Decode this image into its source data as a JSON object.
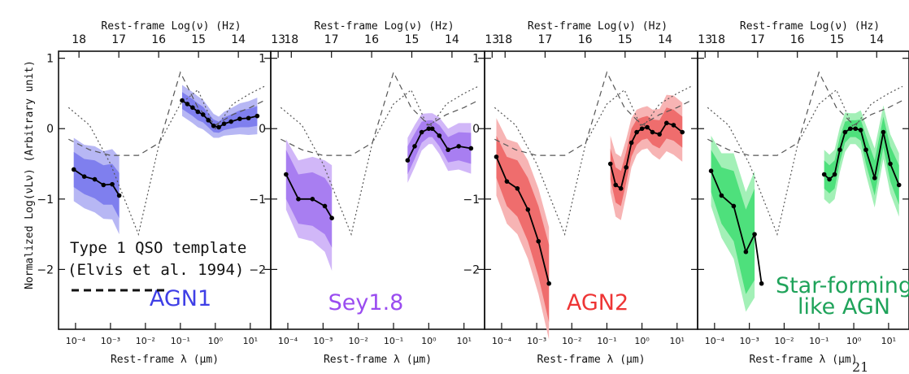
{
  "figure": {
    "ylabel": "Normalized Log(νLν) (Arbitrary unit)",
    "legend_note_line1": "Type 1 QSO template",
    "legend_note_line2": "(Elvis et al. 1994)",
    "page_number": "21"
  },
  "chart_data": [
    {
      "type": "area",
      "label": "AGN1",
      "color": "#3f3fe6",
      "band_outer": "#b7b7f4",
      "band_inner": "#7f7fee",
      "top_axis_label": "Rest-frame Log(ν) (Hz)",
      "top_ticks": [
        "18",
        "17",
        "16",
        "15",
        "14",
        "13"
      ],
      "bottom_axis_label": "Rest-frame λ (μm)",
      "bottom_ticks": [
        "10⁻⁴",
        "10⁻³",
        "10⁻²",
        "10⁻¹",
        "10⁰",
        "10¹"
      ],
      "y_ticks": [
        "1",
        "0",
        "−1",
        "−2"
      ],
      "xlim": [
        -4.3,
        1.4
      ],
      "ylim": [
        -2.85,
        1.1
      ],
      "xray_x": [
        -4.05,
        -3.75,
        -3.45,
        -3.2,
        -2.95,
        -2.75
      ],
      "xray_y": [
        -0.58,
        -0.68,
        -0.72,
        -0.8,
        -0.79,
        -0.95
      ],
      "xray_band_inner": [
        0.25,
        0.25,
        0.27,
        0.28,
        0.29,
        0.32
      ],
      "xray_band_outer": [
        0.45,
        0.45,
        0.47,
        0.48,
        0.5,
        0.55
      ],
      "ir_x": [
        -0.95,
        -0.8,
        -0.65,
        -0.5,
        -0.35,
        -0.2,
        -0.05,
        0.1,
        0.25,
        0.45,
        0.7,
        0.95,
        1.2
      ],
      "ir_y": [
        0.4,
        0.35,
        0.3,
        0.24,
        0.2,
        0.12,
        0.04,
        0.02,
        0.07,
        0.1,
        0.14,
        0.15,
        0.18
      ],
      "ir_band_inner": [
        0.12,
        0.12,
        0.12,
        0.12,
        0.11,
        0.1,
        0.09,
        0.08,
        0.09,
        0.1,
        0.12,
        0.13,
        0.14
      ],
      "ir_band_outer": [
        0.22,
        0.22,
        0.22,
        0.22,
        0.21,
        0.19,
        0.17,
        0.15,
        0.17,
        0.19,
        0.22,
        0.24,
        0.26
      ]
    },
    {
      "type": "area",
      "label": "Sey1.8",
      "color": "#9a4cf0",
      "band_outer": "#d1b7f8",
      "band_inner": "#a87ef1",
      "top_axis_label": "Rest-frame Log(ν) (Hz)",
      "top_ticks": [
        "18",
        "17",
        "16",
        "15",
        "14",
        "13"
      ],
      "bottom_axis_label": "Rest-frame λ (μm)",
      "bottom_ticks": [
        "10⁻⁴",
        "10⁻³",
        "10⁻²",
        "10⁻¹",
        "10⁰",
        "10¹"
      ],
      "y_ticks": [
        "1",
        "0",
        "−1",
        "−2"
      ],
      "xlim": [
        -4.3,
        1.4
      ],
      "ylim": [
        -2.85,
        1.1
      ],
      "xray_x": [
        -4.05,
        -3.7,
        -3.3,
        -2.95,
        -2.75
      ],
      "xray_y": [
        -0.65,
        -1.0,
        -1.0,
        -1.1,
        -1.27
      ],
      "xray_band_inner": [
        0.35,
        0.35,
        0.38,
        0.4,
        0.42
      ],
      "xray_band_outer": [
        0.5,
        0.55,
        0.6,
        0.65,
        0.75
      ],
      "ir_x": [
        -0.6,
        -0.4,
        -0.2,
        0.0,
        0.1,
        0.3,
        0.55,
        0.85,
        1.2
      ],
      "ir_y": [
        -0.45,
        -0.25,
        -0.05,
        0.0,
        0.0,
        -0.1,
        -0.3,
        -0.25,
        -0.28
      ],
      "ir_band_inner": [
        0.2,
        0.18,
        0.15,
        0.12,
        0.12,
        0.15,
        0.18,
        0.2,
        0.22
      ],
      "ir_band_outer": [
        0.32,
        0.3,
        0.26,
        0.22,
        0.22,
        0.26,
        0.3,
        0.33,
        0.36
      ]
    },
    {
      "type": "area",
      "label": "AGN2",
      "color": "#ee3535",
      "band_outer": "#f7b4b4",
      "band_inner": "#ef6d6d",
      "top_axis_label": "Rest-frame Log(ν) (Hz)",
      "top_ticks": [
        "18",
        "17",
        "16",
        "15",
        "14",
        "13"
      ],
      "bottom_axis_label": "Rest-frame λ (μm)",
      "bottom_ticks": [
        "10⁻⁴",
        "10⁻³",
        "10⁻²",
        "10⁻¹",
        "10⁰",
        "10¹"
      ],
      "y_ticks": [
        "1",
        "0",
        "−1",
        "−2"
      ],
      "xlim": [
        -4.3,
        1.4
      ],
      "ylim": [
        -2.85,
        1.1
      ],
      "xray_x": [
        -4.15,
        -3.85,
        -3.55,
        -3.25,
        -2.95,
        -2.65
      ],
      "xray_y": [
        -0.4,
        -0.75,
        -0.85,
        -1.15,
        -1.6,
        -2.2
      ],
      "xray_band_inner": [
        0.3,
        0.35,
        0.4,
        0.45,
        0.5,
        0.55
      ],
      "xray_band_outer": [
        0.55,
        0.6,
        0.65,
        0.7,
        0.75,
        0.8
      ],
      "ir_x": [
        -0.9,
        -0.75,
        -0.6,
        -0.45,
        -0.3,
        -0.15,
        0.0,
        0.15,
        0.3,
        0.5,
        0.7,
        0.9,
        1.15
      ],
      "ir_y": [
        -0.5,
        -0.8,
        -0.85,
        -0.55,
        -0.2,
        -0.05,
        0.0,
        0.02,
        -0.05,
        -0.08,
        0.08,
        0.05,
        -0.05
      ],
      "ir_band_inner": [
        0.22,
        0.25,
        0.25,
        0.22,
        0.2,
        0.18,
        0.16,
        0.16,
        0.18,
        0.2,
        0.22,
        0.22,
        0.22
      ],
      "ir_band_outer": [
        0.4,
        0.45,
        0.45,
        0.4,
        0.35,
        0.32,
        0.3,
        0.3,
        0.32,
        0.36,
        0.4,
        0.42,
        0.42
      ]
    },
    {
      "type": "area",
      "label": "Star-forming\nlike AGN",
      "color": "#1fa35a",
      "band_outer": "#a3f0b7",
      "band_inner": "#4ee07c",
      "top_axis_label": "Rest-frame Log(ν) (Hz)",
      "top_ticks": [
        "18",
        "17",
        "16",
        "15",
        "14"
      ],
      "bottom_axis_label": "Rest-frame λ (μm)",
      "bottom_ticks": [
        "10⁻⁴",
        "10⁻³",
        "10⁻²",
        "10⁻¹",
        "10⁰",
        "10¹"
      ],
      "y_ticks": [],
      "xlim": [
        -4.3,
        1.4
      ],
      "ylim": [
        -2.85,
        1.1
      ],
      "xray_x": [
        -4.1,
        -3.8,
        -3.45,
        -3.1,
        -2.85
      ],
      "xray_y": [
        -0.6,
        -0.95,
        -1.1,
        -1.75,
        -1.5
      ],
      "xray_y_end": -2.2,
      "xray_band_inner": [
        0.3,
        0.4,
        0.5,
        0.6,
        0.65
      ],
      "xray_band_outer": [
        0.5,
        0.6,
        0.75,
        0.85,
        0.9
      ],
      "ir_x": [
        -0.85,
        -0.7,
        -0.55,
        -0.4,
        -0.25,
        -0.1,
        0.05,
        0.2,
        0.35,
        0.6,
        0.85,
        1.05,
        1.3
      ],
      "ir_y": [
        -0.65,
        -0.72,
        -0.65,
        -0.3,
        -0.05,
        0.0,
        0.0,
        -0.02,
        -0.3,
        -0.7,
        -0.05,
        -0.5,
        -0.8
      ],
      "ir_band_inner": [
        0.2,
        0.2,
        0.2,
        0.18,
        0.15,
        0.12,
        0.12,
        0.15,
        0.2,
        0.25,
        0.22,
        0.25,
        0.28
      ],
      "ir_band_outer": [
        0.35,
        0.35,
        0.35,
        0.32,
        0.28,
        0.22,
        0.22,
        0.28,
        0.35,
        0.42,
        0.38,
        0.42,
        0.45
      ]
    }
  ]
}
